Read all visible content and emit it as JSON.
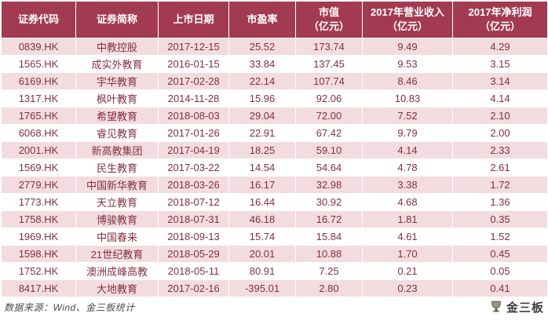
{
  "chart_data": {
    "type": "table",
    "columns": [
      "证券代码",
      "证券简称",
      "上市日期",
      "市盈率",
      "市值（亿元）",
      "2017年营业收入（亿元）",
      "2017年净利润（亿元）"
    ],
    "rows": [
      [
        "0839.HK",
        "中教控股",
        "2017-12-15",
        "25.52",
        "173.74",
        "9.49",
        "4.29"
      ],
      [
        "1565.HK",
        "成实外教育",
        "2016-01-15",
        "33.84",
        "137.45",
        "9.53",
        "3.15"
      ],
      [
        "6169.HK",
        "宇华教育",
        "2017-02-28",
        "22.14",
        "107.74",
        "8.46",
        "3.14"
      ],
      [
        "1317.HK",
        "枫叶教育",
        "2014-11-28",
        "15.96",
        "92.06",
        "10.83",
        "4.14"
      ],
      [
        "1765.HK",
        "希望教育",
        "2018-08-03",
        "29.04",
        "72.00",
        "7.52",
        "2.10"
      ],
      [
        "6068.HK",
        "睿见教育",
        "2017-01-26",
        "22.91",
        "67.42",
        "9.79",
        "2.00"
      ],
      [
        "2001.HK",
        "新高教集团",
        "2017-04-19",
        "18.25",
        "59.10",
        "4.14",
        "2.33"
      ],
      [
        "1569.HK",
        "民生教育",
        "2017-03-22",
        "14.54",
        "54.64",
        "4.78",
        "2.61"
      ],
      [
        "2779.HK",
        "中国新华教育",
        "2018-03-26",
        "16.17",
        "32.98",
        "3.38",
        "1.72"
      ],
      [
        "1773.HK",
        "天立教育",
        "2018-07-12",
        "16.44",
        "30.92",
        "4.68",
        "1.36"
      ],
      [
        "1758.HK",
        "博骏教育",
        "2018-07-31",
        "46.18",
        "16.72",
        "1.81",
        "0.35"
      ],
      [
        "1969.HK",
        "中国春来",
        "2018-09-13",
        "15.74",
        "15.84",
        "4.61",
        "1.52"
      ],
      [
        "1598.HK",
        "21世纪教育",
        "2018-05-29",
        "20.01",
        "10.88",
        "1.70",
        "0.45"
      ],
      [
        "1752.HK",
        "澳洲成峰高教",
        "2018-05-11",
        "80.91",
        "7.25",
        "0.21",
        "0.05"
      ],
      [
        "8417.HK",
        "大地教育",
        "2017-02-16",
        "-395.01",
        "2.80",
        "0.23",
        "0.41"
      ]
    ]
  },
  "table": {
    "headers": [
      {
        "line1": "证券代码",
        "line2": ""
      },
      {
        "line1": "证券简称",
        "line2": ""
      },
      {
        "line1": "上市日期",
        "line2": ""
      },
      {
        "line1": "市盈率",
        "line2": ""
      },
      {
        "line1": "市值",
        "line2": "（亿元）"
      },
      {
        "line1": "2017年营业收入",
        "line2": "（亿元）"
      },
      {
        "line1": "2017年净利润",
        "line2": "（亿元）"
      }
    ]
  },
  "footer": {
    "source": "数据来源：Wind、金三板统计"
  },
  "logo": {
    "text": "金三板"
  },
  "colors": {
    "header_bg": "#a23b52",
    "row_pink": "#f3dce0",
    "text_maroon": "#82303f",
    "source_gray": "#4a4a4a"
  }
}
